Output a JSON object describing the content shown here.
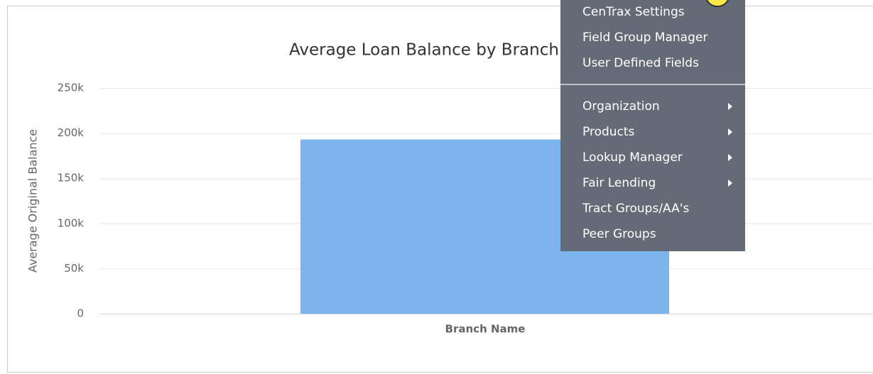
{
  "chart_data": {
    "type": "bar",
    "title": "Average Loan Balance by Branch",
    "x_label": "Branch Name",
    "y_label": "Average Original Balance",
    "categories": [
      null
    ],
    "values": [
      193000
    ],
    "color": "#7cb5ec",
    "ylim": [
      0,
      250000
    ],
    "yticks": [
      0,
      {
        "value": 50000,
        "label": "50k"
      },
      {
        "value": 100000,
        "label": "100k"
      },
      {
        "value": 150000,
        "label": "150k"
      },
      {
        "value": 200000,
        "label": "200k"
      },
      {
        "value": 250000,
        "label": "250k"
      }
    ],
    "grid": true
  },
  "menu": {
    "groups": [
      [
        {
          "label": "CenTrax Settings",
          "submenu": false
        },
        {
          "label": "Field Group Manager",
          "submenu": false
        },
        {
          "label": "User Defined Fields",
          "submenu": false
        }
      ],
      [
        {
          "label": "Organization",
          "submenu": true
        },
        {
          "label": "Products",
          "submenu": true
        },
        {
          "label": "Lookup Manager",
          "submenu": true
        },
        {
          "label": "Fair Lending",
          "submenu": true
        },
        {
          "label": "Tract Groups/AA's",
          "submenu": false
        },
        {
          "label": "Peer Groups",
          "submenu": false
        }
      ]
    ]
  }
}
